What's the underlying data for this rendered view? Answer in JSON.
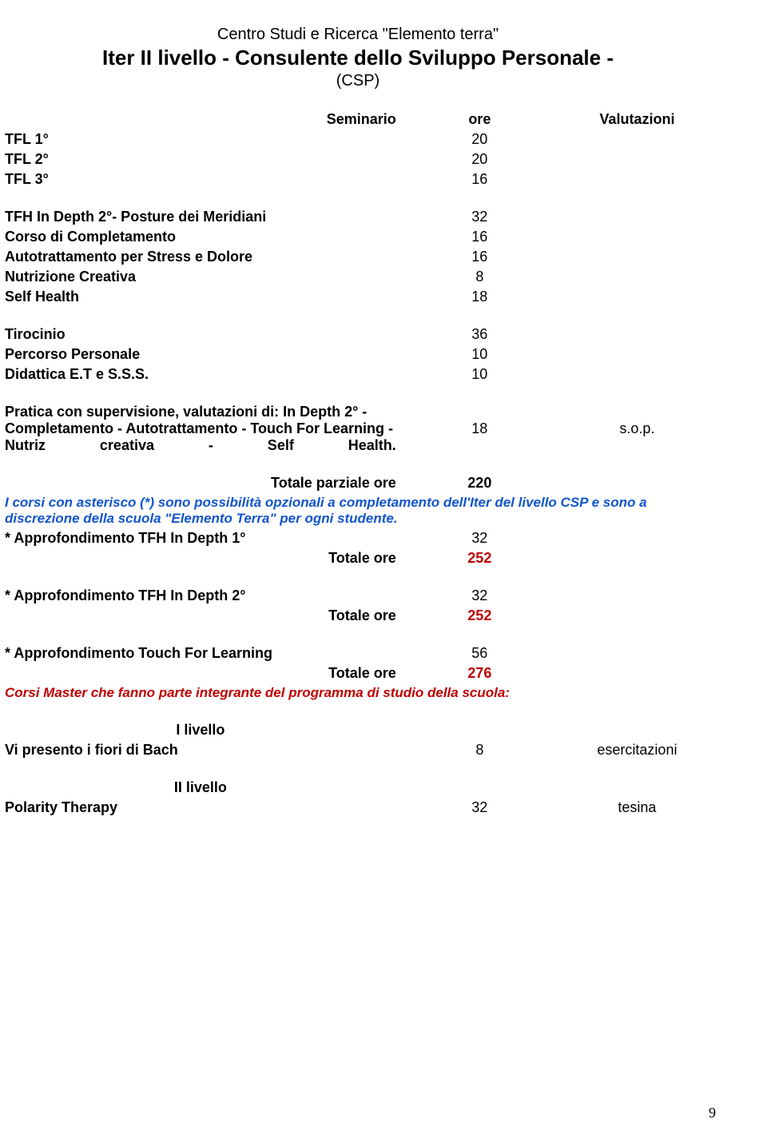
{
  "header": {
    "org": "Centro Studi e Ricerca \"Elemento terra\"",
    "title": "Iter II livello - Consulente dello Sviluppo Personale -",
    "subtitle": "(CSP)"
  },
  "colors": {
    "blue_note": "#1155cc",
    "red_accent": "#c00000",
    "text": "#000000",
    "background": "#ffffff"
  },
  "columns": {
    "seminario": "Seminario",
    "ore": "ore",
    "valutazioni": "Valutazioni"
  },
  "block_tfl": [
    {
      "label": "TFL 1°",
      "ore": "20"
    },
    {
      "label": "TFL 2°",
      "ore": "20"
    },
    {
      "label": "TFL 3°",
      "ore": "16"
    }
  ],
  "block_mid": [
    {
      "label": "TFH In Depth 2°- Posture dei Meridiani",
      "ore": "32"
    },
    {
      "label": "Corso di Completamento",
      "ore": "16"
    },
    {
      "label": "Autotrattamento per Stress e Dolore",
      "ore": "16"
    },
    {
      "label": "Nutrizione Creativa",
      "ore": "8"
    },
    {
      "label": "Self Health",
      "ore": "18"
    }
  ],
  "block_tiroc": [
    {
      "label": "Tirocinio",
      "ore": "36"
    },
    {
      "label": "Percorso Personale",
      "ore": "10"
    },
    {
      "label": "Didattica E.T e S.S.S.",
      "ore": "10"
    }
  ],
  "pratica": {
    "text": "Pratica con supervisione, valutazioni di: In Depth 2° - Completamento - Autotrattamento - Touch For Learning - Nutriz creativa - Self Health.",
    "ore": "18",
    "val": "s.o.p."
  },
  "tot_parziale": {
    "label": "Totale parziale  ore",
    "value": "220"
  },
  "note_blue": "I corsi con asterisco (*) sono possibilità opzionali a completamento dell'Iter del livello CSP e sono a discrezione della scuola \"Elemento Terra\" per ogni studente.",
  "approf": [
    {
      "label": "* Approfondimento TFH In Depth 1°",
      "ore": "32",
      "tot_label": "Totale  ore",
      "tot": "252"
    },
    {
      "label": "* Approfondimento TFH In Depth 2°",
      "ore": "32",
      "tot_label": "Totale  ore",
      "tot": "252"
    },
    {
      "label": "* Approfondimento Touch For Learning",
      "ore": "56",
      "tot_label": "Totale  ore",
      "tot": "276"
    }
  ],
  "note_red": "Corsi Master che fanno parte integrante del programma di studio della scuola:",
  "livello1": {
    "heading": "I livello",
    "row": {
      "label": "Vi presento i fiori di Bach",
      "ore": "8",
      "val": "esercitazioni"
    }
  },
  "livello2": {
    "heading": "II livello",
    "row": {
      "label": "Polarity Therapy",
      "ore": "32",
      "val": "tesina"
    }
  },
  "page_number": "9"
}
